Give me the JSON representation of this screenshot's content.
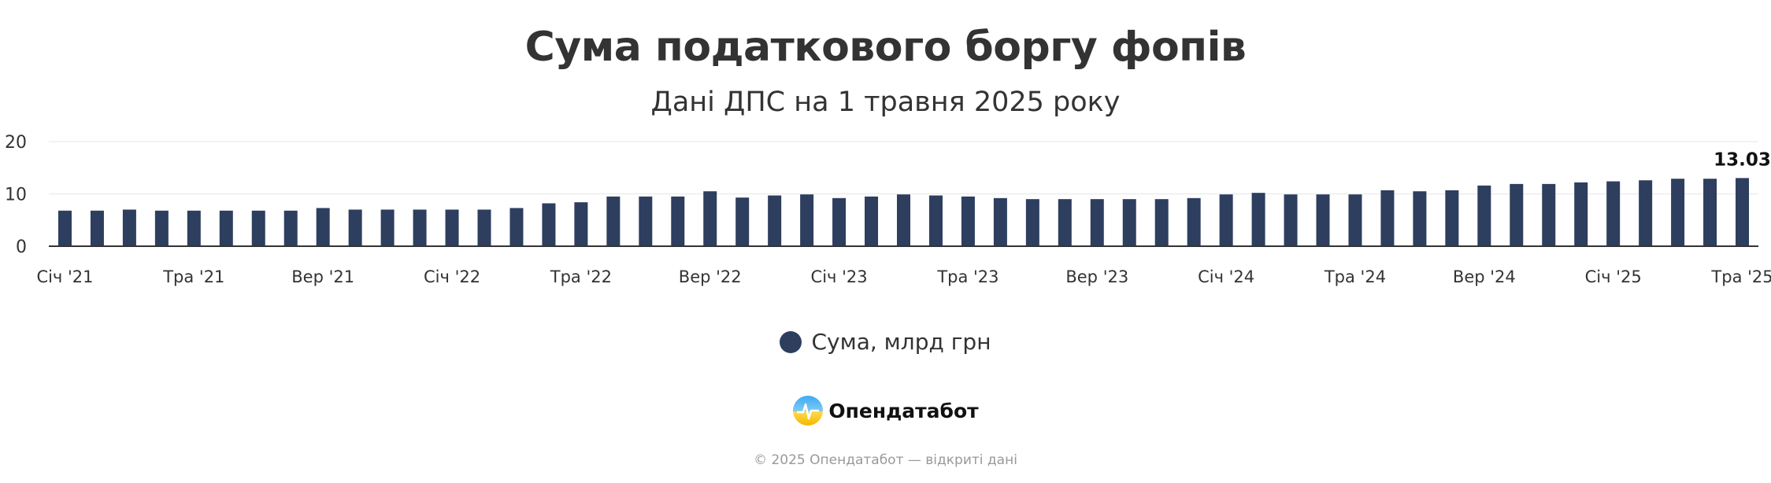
{
  "title": "Сума податкового боргу фопів",
  "subtitle": "Дані ДПС на 1 травня 2025 року",
  "legend": {
    "label": "Сума, млрд грн",
    "color": "#2d3e5f"
  },
  "brand": {
    "name": "Опендатабот"
  },
  "footer": {
    "copyright": "© 2025 Опендатабот — відкриті дані"
  },
  "chart_data": {
    "type": "bar",
    "title": "Сума податкового боргу фопів",
    "subtitle": "Дані ДПС на 1 травня 2025 року",
    "xlabel": "",
    "ylabel": "",
    "ylim": [
      0,
      20
    ],
    "yticks": [
      0,
      10,
      20
    ],
    "grid": true,
    "legend_position": "bottom",
    "bar_color": "#2d3e5f",
    "x_tick_labels": [
      {
        "index": 0,
        "label": "Січ '21"
      },
      {
        "index": 4,
        "label": "Тра '21"
      },
      {
        "index": 8,
        "label": "Вер '21"
      },
      {
        "index": 12,
        "label": "Січ '22"
      },
      {
        "index": 16,
        "label": "Тра '22"
      },
      {
        "index": 20,
        "label": "Вер '22"
      },
      {
        "index": 24,
        "label": "Січ '23"
      },
      {
        "index": 28,
        "label": "Тра '23"
      },
      {
        "index": 32,
        "label": "Вер '23"
      },
      {
        "index": 36,
        "label": "Січ '24"
      },
      {
        "index": 40,
        "label": "Тра '24"
      },
      {
        "index": 44,
        "label": "Вер '24"
      },
      {
        "index": 48,
        "label": "Січ '25"
      },
      {
        "index": 52,
        "label": "Тра '25"
      }
    ],
    "data_labels": [
      {
        "index": 52,
        "label": "13.03"
      }
    ],
    "series": [
      {
        "name": "Сума, млрд грн",
        "values": [
          6.8,
          6.8,
          7.0,
          6.8,
          6.8,
          6.8,
          6.8,
          6.8,
          7.3,
          7.0,
          7.0,
          7.0,
          7.0,
          7.0,
          7.3,
          8.2,
          8.4,
          9.5,
          9.5,
          9.5,
          10.5,
          9.3,
          9.7,
          9.9,
          9.2,
          9.5,
          9.9,
          9.7,
          9.5,
          9.2,
          9.0,
          9.0,
          9.0,
          9.0,
          9.0,
          9.2,
          9.9,
          10.2,
          9.9,
          9.9,
          9.9,
          10.7,
          10.5,
          10.7,
          11.6,
          11.9,
          11.9,
          12.2,
          12.4,
          12.6,
          12.9,
          12.9,
          13.03
        ]
      }
    ]
  }
}
